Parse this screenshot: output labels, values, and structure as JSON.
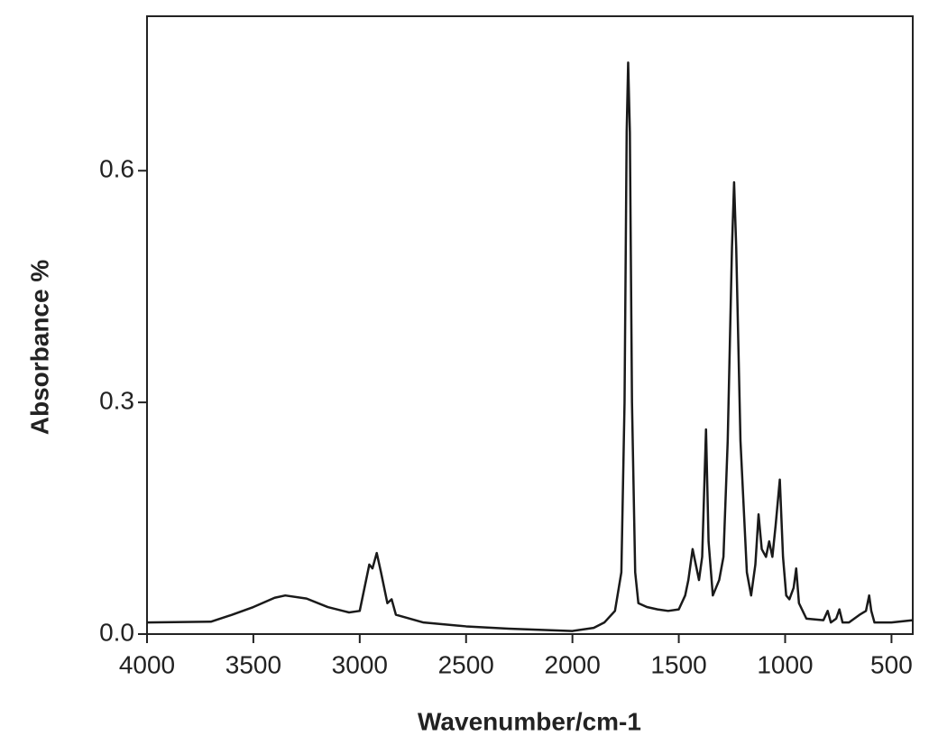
{
  "chart_data": {
    "type": "line",
    "xlabel": "Wavenumber/cm-1",
    "ylabel": "Absorbance %",
    "color": "#1a1a1a",
    "xlim": [
      4000,
      400
    ],
    "ylim": [
      0,
      0.8
    ],
    "xticks": [
      4000,
      3500,
      3000,
      2500,
      2000,
      1500,
      1000,
      500
    ],
    "yticks": [
      {
        "value": 0,
        "label": "0.0"
      },
      0.3,
      0.6
    ],
    "x": [
      4000,
      3700,
      3600,
      3500,
      3400,
      3350,
      3250,
      3150,
      3050,
      3000,
      2970,
      2955,
      2940,
      2920,
      2900,
      2870,
      2850,
      2830,
      2700,
      2500,
      2300,
      2100,
      2000,
      1900,
      1850,
      1800,
      1770,
      1755,
      1745,
      1738,
      1730,
      1720,
      1705,
      1690,
      1650,
      1600,
      1550,
      1500,
      1470,
      1455,
      1435,
      1420,
      1405,
      1390,
      1372,
      1360,
      1340,
      1310,
      1290,
      1270,
      1250,
      1240,
      1230,
      1210,
      1180,
      1160,
      1140,
      1125,
      1110,
      1090,
      1075,
      1060,
      1045,
      1025,
      1010,
      995,
      980,
      960,
      948,
      935,
      900,
      820,
      800,
      785,
      760,
      745,
      730,
      700,
      650,
      620,
      605,
      595,
      580,
      500,
      400
    ],
    "values": [
      0.015,
      0.016,
      0.025,
      0.035,
      0.047,
      0.05,
      0.046,
      0.035,
      0.028,
      0.03,
      0.07,
      0.09,
      0.085,
      0.105,
      0.08,
      0.04,
      0.045,
      0.025,
      0.015,
      0.01,
      0.007,
      0.005,
      0.004,
      0.008,
      0.015,
      0.03,
      0.08,
      0.3,
      0.65,
      0.74,
      0.65,
      0.3,
      0.08,
      0.04,
      0.035,
      0.032,
      0.03,
      0.032,
      0.05,
      0.07,
      0.11,
      0.09,
      0.07,
      0.1,
      0.265,
      0.12,
      0.05,
      0.07,
      0.1,
      0.25,
      0.5,
      0.585,
      0.5,
      0.25,
      0.08,
      0.05,
      0.09,
      0.155,
      0.11,
      0.1,
      0.12,
      0.1,
      0.14,
      0.2,
      0.1,
      0.05,
      0.045,
      0.06,
      0.085,
      0.04,
      0.02,
      0.018,
      0.03,
      0.015,
      0.02,
      0.032,
      0.015,
      0.015,
      0.025,
      0.03,
      0.05,
      0.03,
      0.015,
      0.015,
      0.018
    ]
  }
}
